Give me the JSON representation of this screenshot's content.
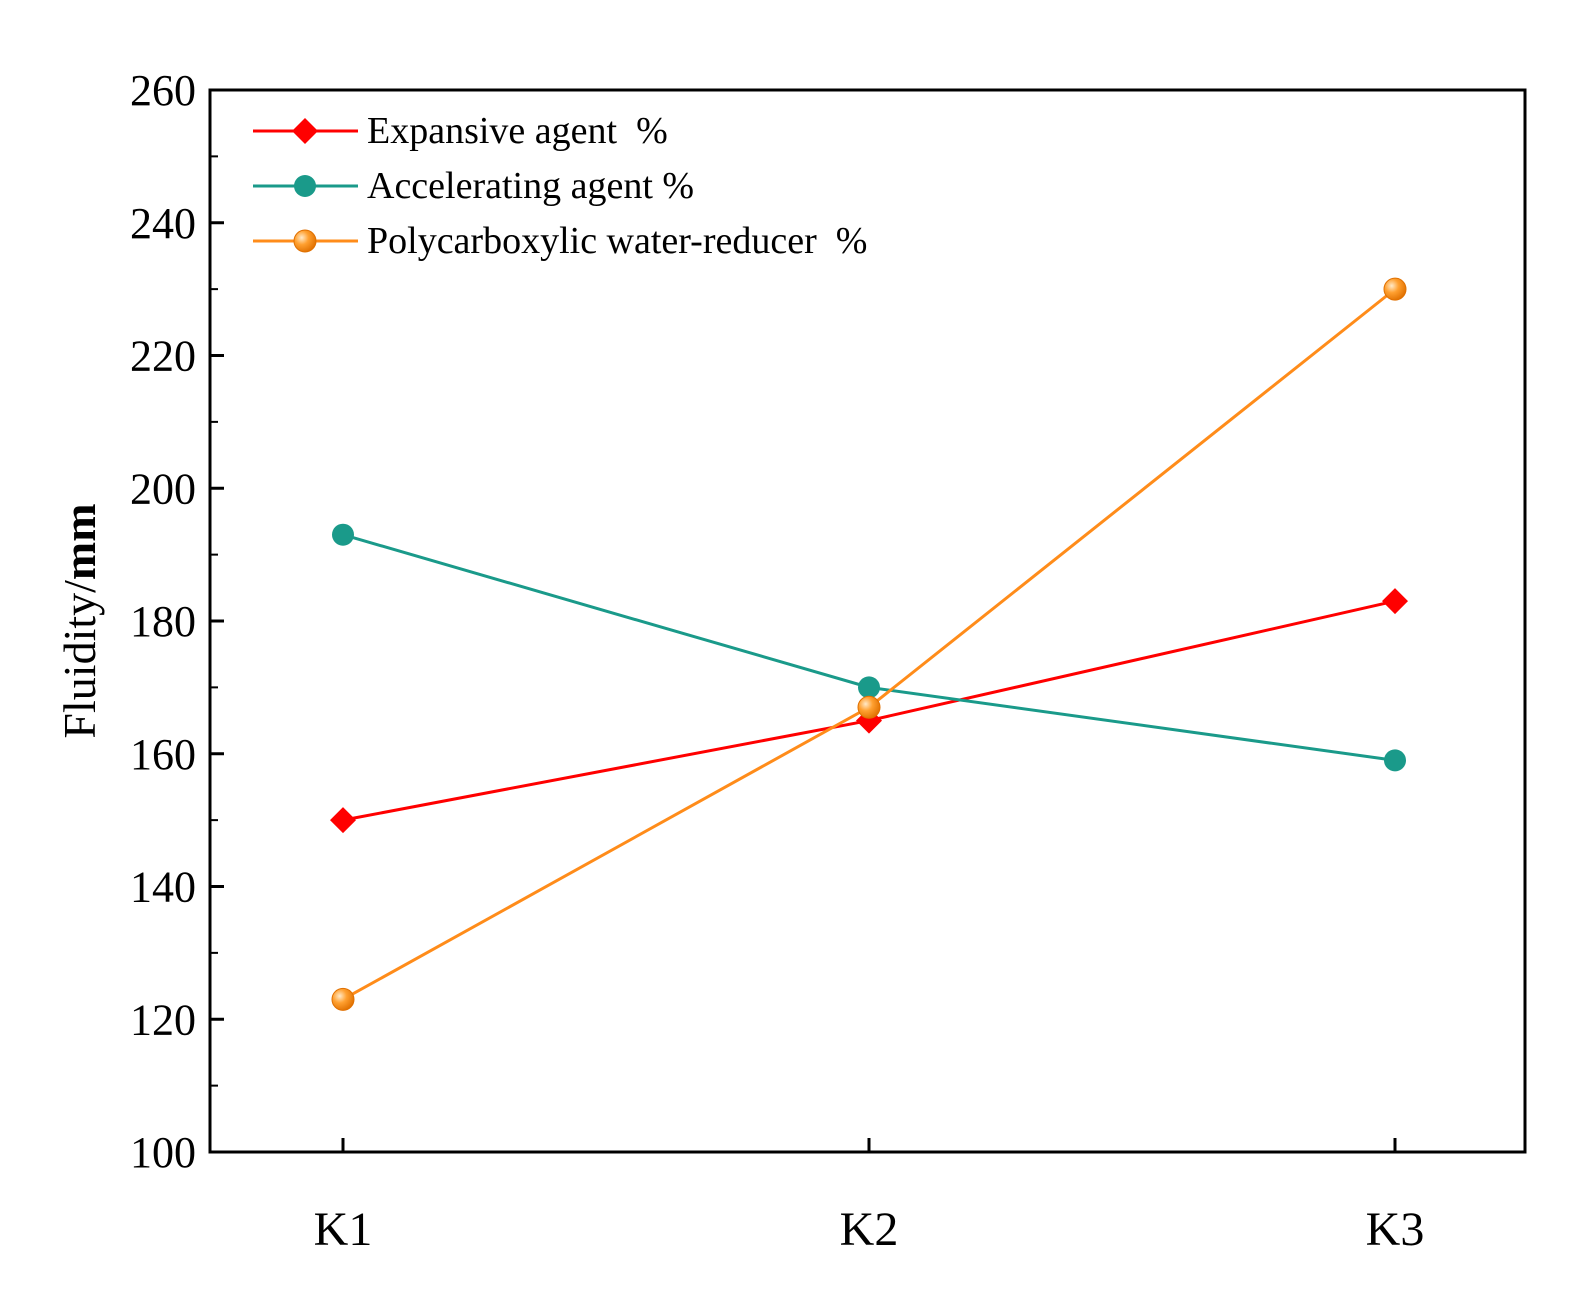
{
  "chart_data": {
    "type": "line",
    "title": "",
    "xlabel": "",
    "ylabel": "Fluidity/mm",
    "ylabel_parts": {
      "normal": "Fluidity/",
      "bold": "mm"
    },
    "categories": [
      "K1",
      "K2",
      "K3"
    ],
    "ylim": [
      100,
      260
    ],
    "yticks": [
      100,
      120,
      140,
      160,
      180,
      200,
      220,
      240,
      260
    ],
    "legend_position": "top-left",
    "grid": false,
    "series": [
      {
        "name": "Expansive agent  %",
        "color": "#ff0000",
        "marker": "diamond",
        "values": [
          150,
          165,
          183
        ]
      },
      {
        "name": "Accelerating agent %",
        "color": "#1a9a8a",
        "marker": "circle",
        "values": [
          193,
          170,
          159
        ]
      },
      {
        "name": "Polycarboxylic water-reducer  %",
        "color": "#ff8c1a",
        "marker": "sphere",
        "values": [
          123,
          167,
          230
        ]
      }
    ]
  }
}
